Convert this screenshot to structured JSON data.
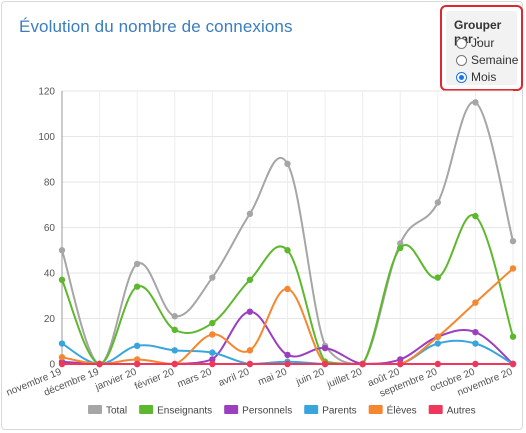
{
  "title": "Évolution du nombre de connexions",
  "group_by": {
    "label": "Grouper par :",
    "options": [
      {
        "label": "Jour",
        "selected": false
      },
      {
        "label": "Semaine",
        "selected": false
      },
      {
        "label": "Mois",
        "selected": true
      }
    ]
  },
  "chart_data": {
    "type": "line",
    "categories": [
      "novembre 19",
      "décembre 19",
      "janvier 20",
      "février 20",
      "mars 20",
      "avril 20",
      "mai 20",
      "juin 20",
      "juillet 20",
      "août 20",
      "septembre 20",
      "octobre 20",
      "novembre 20"
    ],
    "ylim": [
      0,
      120
    ],
    "yticks": [
      0,
      20,
      40,
      60,
      80,
      100,
      120
    ],
    "grid": true,
    "legend_position": "bottom",
    "series": [
      {
        "name": "Total",
        "color": "#a6a6a6",
        "values": [
          50,
          0,
          44,
          21,
          38,
          66,
          88,
          8,
          0,
          53,
          71,
          115,
          54
        ]
      },
      {
        "name": "Enseignants",
        "color": "#5eb82e",
        "values": [
          37,
          0,
          34,
          15,
          18,
          37,
          50,
          1,
          0,
          51,
          38,
          65,
          12
        ]
      },
      {
        "name": "Personnels",
        "color": "#9b3fbf",
        "values": [
          1,
          0,
          0,
          0,
          2,
          23,
          4,
          7,
          0,
          2,
          12,
          14,
          0
        ]
      },
      {
        "name": "Parents",
        "color": "#3aa5dc",
        "values": [
          9,
          0,
          8,
          6,
          5,
          0,
          1,
          0,
          0,
          0,
          9,
          9,
          0
        ]
      },
      {
        "name": "Élèves",
        "color": "#f4872f",
        "values": [
          3,
          0,
          2,
          0,
          13,
          6,
          33,
          0,
          0,
          0,
          12,
          27,
          42
        ]
      },
      {
        "name": "Autres",
        "color": "#f0365b",
        "values": [
          0,
          0,
          0,
          0,
          0,
          0,
          0,
          0,
          0,
          0,
          0,
          0,
          0
        ]
      }
    ]
  }
}
